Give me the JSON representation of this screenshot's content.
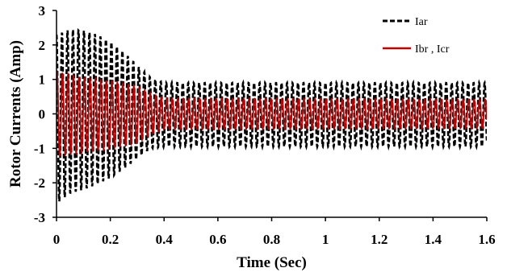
{
  "chart_data": {
    "type": "line",
    "title": "",
    "xlabel": "Time (Sec)",
    "ylabel": "Rotor Currents  (Amp)",
    "xlim": [
      0,
      1.6
    ],
    "ylim": [
      -3,
      3
    ],
    "x_ticks": [
      "0",
      "0.2",
      "0.4",
      "0.6",
      "0.8",
      "1",
      "1.2",
      "1.4",
      "1.6"
    ],
    "y_ticks": [
      "3",
      "2",
      "1",
      "0",
      "-1",
      "-2",
      "-3"
    ],
    "grid": false,
    "legend_position": "top-right",
    "oscillation_cycles_per_sec": 49,
    "series": [
      {
        "name": "Iar",
        "color": "#000000",
        "style": "dashed",
        "envelope": {
          "t": [
            0,
            0.05,
            0.1,
            0.15,
            0.2,
            0.25,
            0.3,
            0.35,
            0.4,
            0.5,
            1.6
          ],
          "upper": [
            2.3,
            2.45,
            2.42,
            2.3,
            2.1,
            1.8,
            1.4,
            1.05,
            0.9,
            0.9,
            0.9
          ],
          "lower": [
            -2.6,
            -2.3,
            -2.2,
            -2.05,
            -1.85,
            -1.6,
            -1.3,
            -1.0,
            -0.95,
            -0.95,
            -0.95
          ]
        }
      },
      {
        "name": "Ibr , Icr",
        "color": "#c00000",
        "style": "solid",
        "envelope": {
          "t": [
            0,
            0.05,
            0.1,
            0.2,
            0.3,
            0.35,
            0.4,
            1.6
          ],
          "upper": [
            1.25,
            1.12,
            1.05,
            0.95,
            0.8,
            0.6,
            0.45,
            0.42
          ],
          "lower": [
            -1.25,
            -1.18,
            -1.12,
            -1.0,
            -0.85,
            -0.6,
            -0.45,
            -0.42
          ]
        }
      }
    ]
  }
}
